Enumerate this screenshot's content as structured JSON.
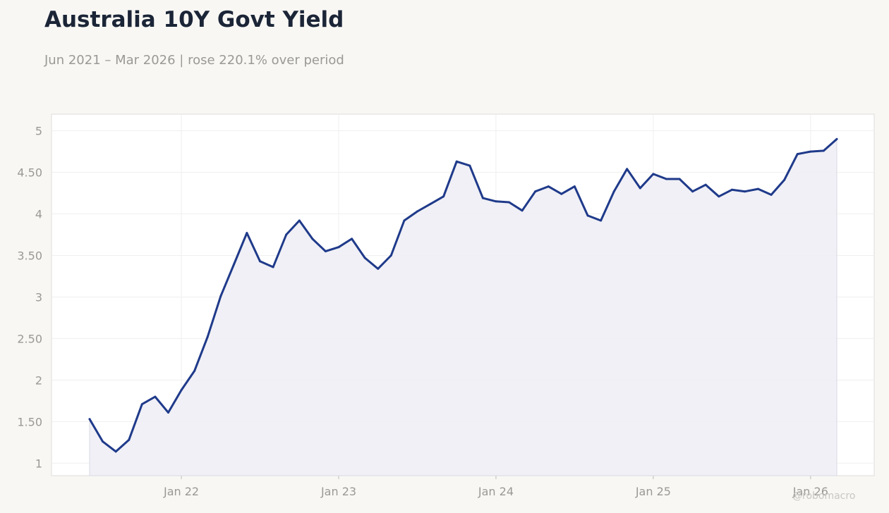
{
  "header": {
    "title": "Australia 10Y Govt Yield",
    "subtitle": "Jun 2021 – Mar 2026 | rose 220.1% over period"
  },
  "watermark": "@robomacro",
  "colors": {
    "background": "#f8f7f4",
    "plot_background": "#ffffff",
    "line": "#1f3a8a",
    "fill": "#eeeef5",
    "grid": "#efefef",
    "text": "#9a9996",
    "title": "#1b2537"
  },
  "chart_data": {
    "type": "area",
    "title": "Australia 10Y Govt Yield",
    "subtitle": "Jun 2021 – Mar 2026 | rose 220.1% over period",
    "x_start": "2021-06",
    "x_end": "2026-03",
    "x_frequency": "monthly",
    "y_ticks": [
      1,
      1.5,
      2,
      2.5,
      3,
      3.5,
      4,
      4.5,
      5
    ],
    "y_tick_labels": [
      "1",
      "1.50",
      "2",
      "2.50",
      "3",
      "3.50",
      "4",
      "4.50",
      "5"
    ],
    "x_ticks": [
      "2022-01",
      "2023-01",
      "2024-01",
      "2025-01",
      "2026-01"
    ],
    "x_tick_labels": [
      "Jan 22",
      "Jan 23",
      "Jan 24",
      "Jan 25",
      "Jan 26"
    ],
    "ylim": [
      0.85,
      5.2
    ],
    "grid": true,
    "series": [
      {
        "values": [
          1.53,
          1.26,
          1.14,
          1.28,
          1.71,
          1.8,
          1.61,
          1.88,
          2.11,
          2.52,
          3.01,
          3.39,
          3.77,
          3.43,
          3.36,
          3.75,
          3.92,
          3.7,
          3.55,
          3.6,
          3.7,
          3.47,
          3.34,
          3.5,
          3.92,
          4.03,
          4.12,
          4.21,
          4.63,
          4.58,
          4.19,
          4.15,
          4.14,
          4.04,
          4.27,
          4.33,
          4.24,
          4.33,
          3.98,
          3.92,
          4.27,
          4.54,
          4.31,
          4.48,
          4.42,
          4.42,
          4.27,
          4.35,
          4.21,
          4.29,
          4.27,
          4.3,
          4.23,
          4.41,
          4.72,
          4.75,
          4.76,
          4.9
        ]
      }
    ]
  }
}
